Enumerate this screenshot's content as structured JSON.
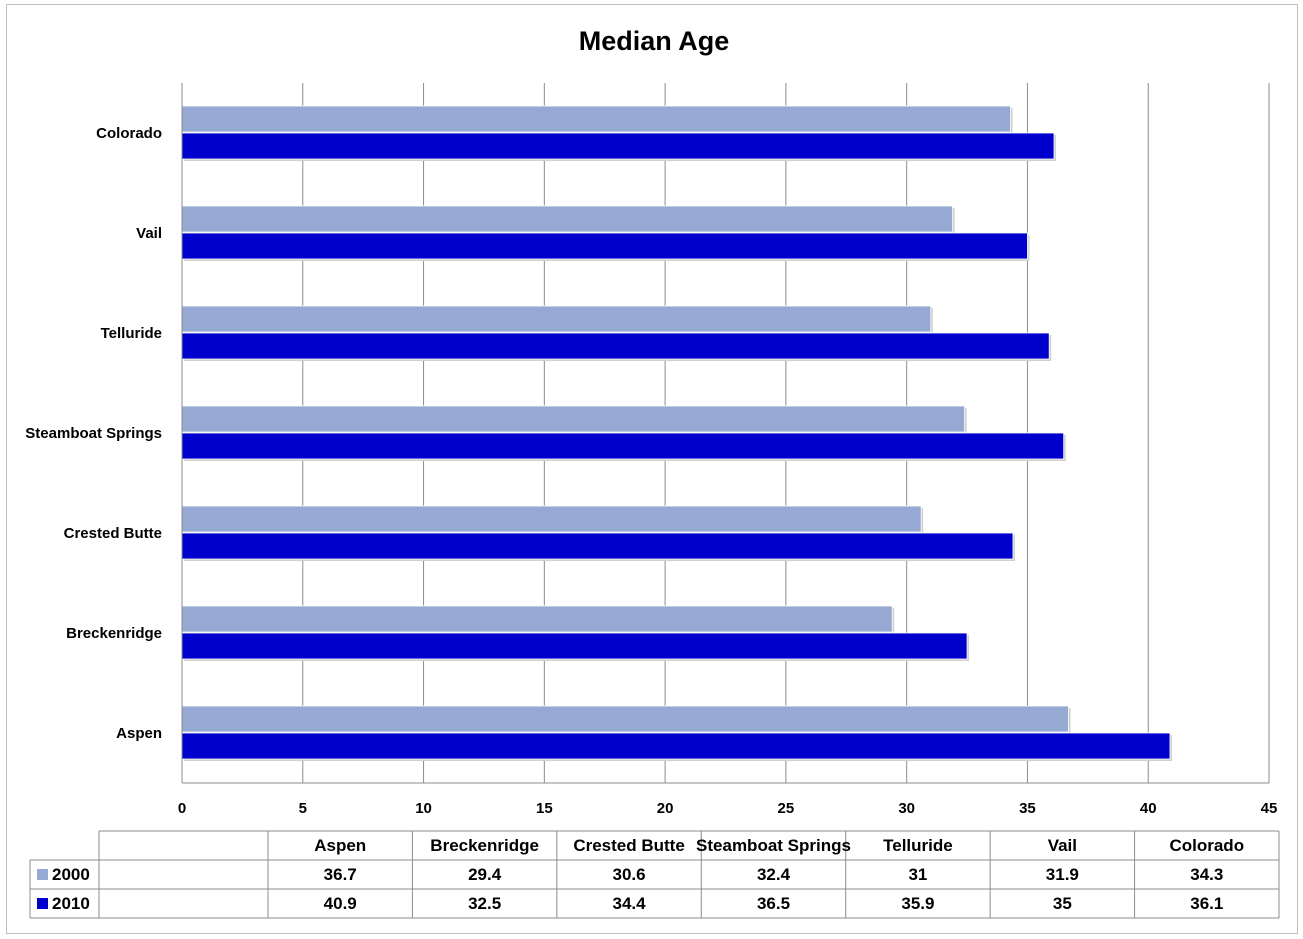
{
  "chart_data": {
    "type": "bar",
    "orientation": "horizontal",
    "title": "Median Age",
    "categories": [
      "Aspen",
      "Breckenridge",
      "Crested Butte",
      "Steamboat Springs",
      "Telluride",
      "Vail",
      "Colorado"
    ],
    "series": [
      {
        "name": "2000",
        "values": [
          36.7,
          29.4,
          30.6,
          32.4,
          31,
          31.9,
          34.3
        ],
        "color": "#95a9d3"
      },
      {
        "name": "2010",
        "values": [
          40.9,
          32.5,
          34.4,
          36.5,
          35.9,
          35,
          36.1
        ],
        "color": "#0000cc"
      }
    ],
    "xlim": [
      0,
      45
    ],
    "x_ticks": [
      0,
      5,
      10,
      15,
      20,
      25,
      30,
      35,
      40,
      45
    ],
    "grid": true,
    "legend": "data-table-below",
    "data_table": true
  }
}
